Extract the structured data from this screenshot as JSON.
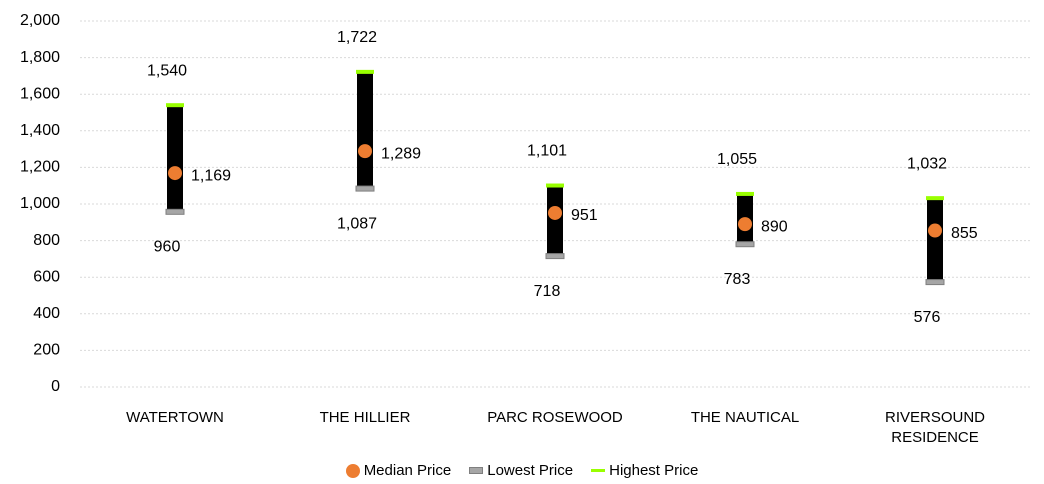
{
  "chart_data": {
    "type": "high-low",
    "categories": [
      "WATERTOWN",
      "THE HILLIER",
      "PARC ROSEWOOD",
      "THE NAUTICAL",
      "RIVERSOUND RESIDENCE"
    ],
    "series": [
      {
        "name": "Median Price",
        "color": "#ed7d31",
        "values": [
          1169,
          1289,
          951,
          890,
          855
        ],
        "value_labels": [
          "1,169",
          "1,289",
          "951",
          "890",
          "855"
        ]
      },
      {
        "name": "Lowest Price",
        "color": "#a6a6a6",
        "values": [
          960,
          1087,
          718,
          783,
          576
        ],
        "value_labels": [
          "960",
          "1,087",
          "718",
          "783",
          "576"
        ]
      },
      {
        "name": "Highest Price",
        "color": "#99ff00",
        "values": [
          1540,
          1722,
          1101,
          1055,
          1032
        ],
        "value_labels": [
          "1,540",
          "1,722",
          "1,101",
          "1,055",
          "1,032"
        ]
      }
    ],
    "ylim": [
      0,
      2000
    ],
    "yticks": [
      0,
      200,
      400,
      600,
      800,
      {
        "value": 1000,
        "label": "1,000"
      },
      {
        "value": 1200,
        "label": "1,200"
      },
      {
        "value": 1400,
        "label": "1,400"
      },
      {
        "value": 1600,
        "label": "1,600"
      },
      {
        "value": 1800,
        "label": "1,800"
      },
      {
        "value": 2000,
        "label": "2,000"
      }
    ],
    "grid": true
  }
}
